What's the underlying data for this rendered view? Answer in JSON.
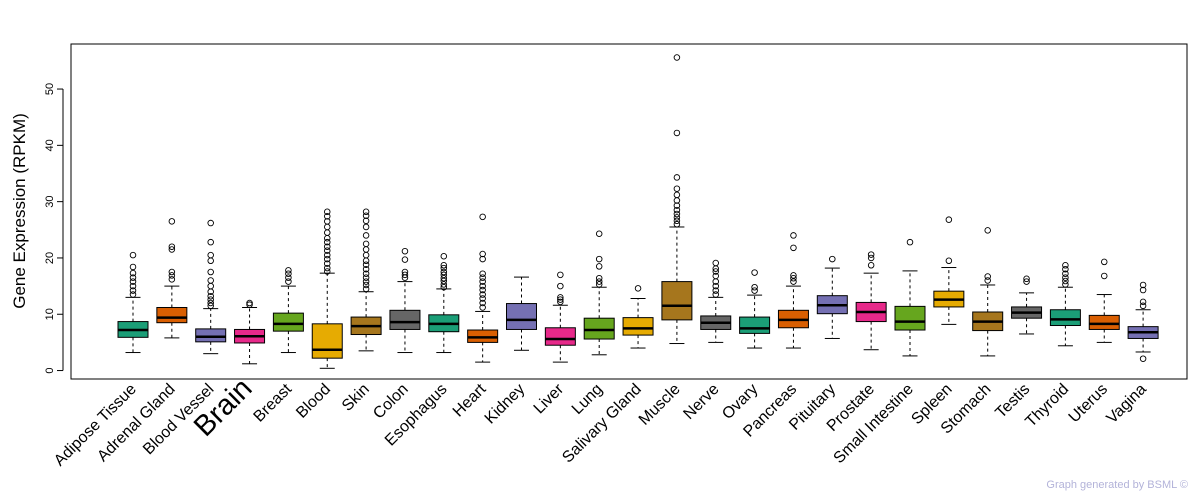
{
  "chart_data": {
    "type": "boxplot",
    "title": "",
    "ylabel": "Gene Expression (RPKM)",
    "xlabel": "",
    "ylim": [
      -1.5,
      58
    ],
    "yticks": [
      0,
      10,
      20,
      30,
      40,
      50
    ],
    "highlight_category": "Brain",
    "highlight_color": "#ff0000",
    "footer": "Graph generated by BSML ©",
    "series": [
      {
        "name": "Adipose Tissue",
        "color": "#1b9e77",
        "whisker_low": 3.2,
        "q1": 5.9,
        "median": 7.2,
        "q3": 8.7,
        "whisker_high": 13.0,
        "outliers": [
          13.5,
          14.2,
          15.0,
          15.8,
          16.5,
          17.3,
          18.4,
          20.5
        ]
      },
      {
        "name": "Adrenal Gland",
        "color": "#d95f02",
        "whisker_low": 5.8,
        "q1": 8.5,
        "median": 9.4,
        "q3": 11.2,
        "whisker_high": 15.0,
        "outliers": [
          16.2,
          16.9,
          17.5,
          21.5,
          22.0,
          26.5
        ]
      },
      {
        "name": "Blood Vessel",
        "color": "#7570b3",
        "whisker_low": 3.0,
        "q1": 5.1,
        "median": 6.0,
        "q3": 7.4,
        "whisker_high": 11.0,
        "outliers": [
          11.5,
          12.0,
          12.6,
          13.2,
          14.0,
          15.0,
          16.0,
          17.5,
          19.5,
          20.5,
          22.8,
          26.2
        ]
      },
      {
        "name": "Brain",
        "color": "#e7298a",
        "whisker_low": 1.2,
        "q1": 4.9,
        "median": 6.1,
        "q3": 7.3,
        "whisker_high": 11.2,
        "outliers": [
          11.7,
          12.0
        ]
      },
      {
        "name": "Breast",
        "color": "#66a61e",
        "whisker_low": 3.2,
        "q1": 7.0,
        "median": 8.3,
        "q3": 10.2,
        "whisker_high": 15.0,
        "outliers": [
          15.8,
          16.5,
          17.2,
          17.8
        ]
      },
      {
        "name": "Blood",
        "color": "#e6ab02",
        "whisker_low": 0.4,
        "q1": 2.2,
        "median": 3.7,
        "q3": 8.3,
        "whisker_high": 17.3,
        "outliers": [
          17.6,
          18.2,
          19.0,
          19.8,
          20.5,
          21.3,
          22.0,
          22.8,
          23.5,
          24.5,
          25.5,
          26.5,
          27.4,
          28.2
        ]
      },
      {
        "name": "Skin",
        "color": "#a6761d",
        "whisker_low": 3.5,
        "q1": 6.4,
        "median": 7.9,
        "q3": 9.5,
        "whisker_high": 14.0,
        "outliers": [
          14.5,
          15.2,
          15.8,
          16.5,
          17.2,
          18.0,
          18.8,
          19.5,
          20.5,
          21.5,
          22.5,
          24.0,
          25.5,
          26.6,
          27.5,
          28.2
        ]
      },
      {
        "name": "Colon",
        "color": "#666666",
        "whisker_low": 3.2,
        "q1": 7.3,
        "median": 8.6,
        "q3": 10.7,
        "whisker_high": 15.8,
        "outliers": [
          16.5,
          17.0,
          17.5,
          19.7,
          21.2
        ]
      },
      {
        "name": "Esophagus",
        "color": "#1b9e77",
        "whisker_low": 3.2,
        "q1": 6.9,
        "median": 8.3,
        "q3": 9.9,
        "whisker_high": 14.5,
        "outliers": [
          14.8,
          15.3,
          15.9,
          16.4,
          17.0,
          17.5,
          18.2,
          18.7,
          20.3
        ]
      },
      {
        "name": "Heart",
        "color": "#d95f02",
        "whisker_low": 1.5,
        "q1": 5.0,
        "median": 5.9,
        "q3": 7.2,
        "whisker_high": 10.5,
        "outliers": [
          11.2,
          12.0,
          12.8,
          13.5,
          14.3,
          15.0,
          15.8,
          16.5,
          17.2,
          19.8,
          20.7,
          27.3
        ]
      },
      {
        "name": "Kidney",
        "color": "#7570b3",
        "whisker_low": 3.6,
        "q1": 7.3,
        "median": 9.0,
        "q3": 11.9,
        "whisker_high": 16.6,
        "outliers": []
      },
      {
        "name": "Liver",
        "color": "#e7298a",
        "whisker_low": 1.5,
        "q1": 4.5,
        "median": 5.6,
        "q3": 7.6,
        "whisker_high": 11.6,
        "outliers": [
          12.2,
          12.6,
          13.0,
          15.0,
          17.0
        ]
      },
      {
        "name": "Lung",
        "color": "#66a61e",
        "whisker_low": 2.8,
        "q1": 5.6,
        "median": 7.2,
        "q3": 9.3,
        "whisker_high": 14.8,
        "outliers": [
          15.3,
          15.8,
          16.4,
          18.5,
          19.8,
          24.3
        ]
      },
      {
        "name": "Salivary Gland",
        "color": "#e6ab02",
        "whisker_low": 4.0,
        "q1": 6.3,
        "median": 7.5,
        "q3": 9.4,
        "whisker_high": 12.8,
        "outliers": [
          14.6
        ]
      },
      {
        "name": "Muscle",
        "color": "#a6761d",
        "whisker_low": 4.8,
        "q1": 9.0,
        "median": 11.5,
        "q3": 15.8,
        "whisker_high": 25.5,
        "outliers": [
          26.0,
          26.6,
          27.2,
          27.8,
          28.5,
          29.3,
          30.2,
          31.2,
          32.3,
          34.3,
          42.2,
          55.6
        ]
      },
      {
        "name": "Nerve",
        "color": "#666666",
        "whisker_low": 5.0,
        "q1": 7.3,
        "median": 8.5,
        "q3": 9.7,
        "whisker_high": 13.0,
        "outliers": [
          13.5,
          14.2,
          15.0,
          15.8,
          16.8,
          17.6,
          18.1,
          19.1
        ]
      },
      {
        "name": "Ovary",
        "color": "#1b9e77",
        "whisker_low": 4.0,
        "q1": 6.6,
        "median": 7.5,
        "q3": 9.5,
        "whisker_high": 13.4,
        "outliers": [
          14.2,
          14.8,
          17.4
        ]
      },
      {
        "name": "Pancreas",
        "color": "#d95f02",
        "whisker_low": 4.0,
        "q1": 7.6,
        "median": 9.0,
        "q3": 10.7,
        "whisker_high": 15.0,
        "outliers": [
          15.8,
          16.4,
          16.9,
          21.8,
          24.0
        ]
      },
      {
        "name": "Pituitary",
        "color": "#7570b3",
        "whisker_low": 5.7,
        "q1": 10.1,
        "median": 11.6,
        "q3": 13.3,
        "whisker_high": 18.2,
        "outliers": [
          19.8
        ]
      },
      {
        "name": "Prostate",
        "color": "#e7298a",
        "whisker_low": 3.7,
        "q1": 8.7,
        "median": 10.4,
        "q3": 12.1,
        "whisker_high": 17.3,
        "outliers": [
          18.7,
          20.0,
          20.6
        ]
      },
      {
        "name": "Small Intestine",
        "color": "#66a61e",
        "whisker_low": 2.6,
        "q1": 7.2,
        "median": 8.7,
        "q3": 11.4,
        "whisker_high": 17.7,
        "outliers": [
          22.8
        ]
      },
      {
        "name": "Spleen",
        "color": "#e6ab02",
        "whisker_low": 8.2,
        "q1": 11.3,
        "median": 12.6,
        "q3": 14.1,
        "whisker_high": 18.3,
        "outliers": [
          19.5,
          26.8
        ]
      },
      {
        "name": "Stomach",
        "color": "#a6761d",
        "whisker_low": 2.6,
        "q1": 7.1,
        "median": 8.7,
        "q3": 10.4,
        "whisker_high": 15.2,
        "outliers": [
          16.0,
          16.7,
          24.9
        ]
      },
      {
        "name": "Testis",
        "color": "#666666",
        "whisker_low": 6.5,
        "q1": 9.3,
        "median": 10.3,
        "q3": 11.3,
        "whisker_high": 13.8,
        "outliers": [
          15.8,
          16.3
        ]
      },
      {
        "name": "Thyroid",
        "color": "#1b9e77",
        "whisker_low": 4.4,
        "q1": 8.0,
        "median": 9.1,
        "q3": 10.8,
        "whisker_high": 14.8,
        "outliers": [
          15.3,
          15.9,
          16.5,
          17.2,
          18.0,
          18.7
        ]
      },
      {
        "name": "Uterus",
        "color": "#d95f02",
        "whisker_low": 5.0,
        "q1": 7.3,
        "median": 8.3,
        "q3": 9.8,
        "whisker_high": 13.5,
        "outliers": [
          16.8,
          19.3
        ]
      },
      {
        "name": "Vagina",
        "color": "#7570b3",
        "whisker_low": 3.3,
        "q1": 5.7,
        "median": 6.8,
        "q3": 7.8,
        "whisker_high": 10.8,
        "outliers": [
          11.5,
          12.2,
          14.3,
          15.2,
          2.1
        ]
      }
    ]
  }
}
